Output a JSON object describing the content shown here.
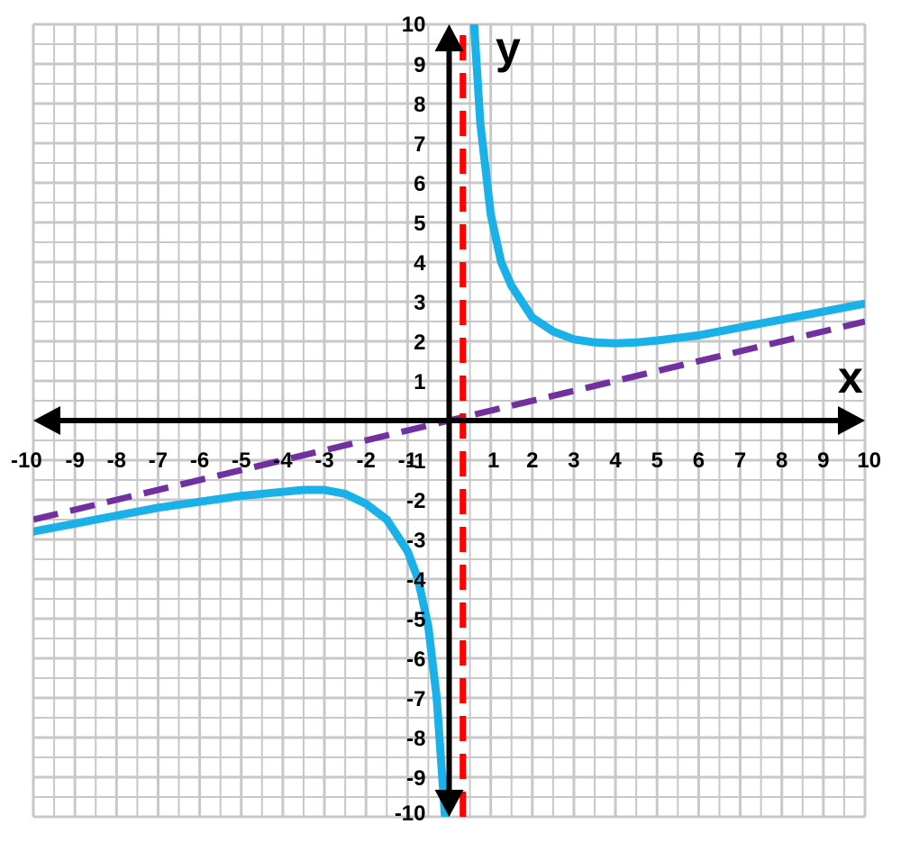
{
  "chart_data": {
    "type": "line",
    "title": "",
    "xlabel": "x",
    "ylabel": "y",
    "xlim": [
      -10,
      10
    ],
    "ylim": [
      -10,
      10
    ],
    "grid": true,
    "x_ticks": [
      -10,
      -9,
      -8,
      -7,
      -6,
      -5,
      -4,
      -3,
      -2,
      -1,
      1,
      2,
      3,
      4,
      5,
      6,
      7,
      8,
      9,
      10
    ],
    "y_ticks": [
      -10,
      -9,
      -8,
      -7,
      -6,
      -5,
      -4,
      -3,
      -2,
      -1,
      1,
      2,
      3,
      4,
      5,
      6,
      7,
      8,
      9,
      10
    ],
    "series": [
      {
        "style": "solid",
        "color": "#1ab0e8",
        "branches": [
          [
            {
              "x": -10,
              "y": -2.8
            },
            {
              "x": -9,
              "y": -2.6
            },
            {
              "x": -8,
              "y": -2.4
            },
            {
              "x": -7,
              "y": -2.2
            },
            {
              "x": -6,
              "y": -2.05
            },
            {
              "x": -5,
              "y": -1.9
            },
            {
              "x": -4,
              "y": -1.8
            },
            {
              "x": -3.5,
              "y": -1.75
            },
            {
              "x": -3,
              "y": -1.75
            },
            {
              "x": -2.5,
              "y": -1.85
            },
            {
              "x": -2,
              "y": -2.1
            },
            {
              "x": -1.5,
              "y": -2.5
            },
            {
              "x": -1,
              "y": -3.3
            },
            {
              "x": -0.75,
              "y": -4.0
            },
            {
              "x": -0.5,
              "y": -5.2
            },
            {
              "x": -0.3,
              "y": -7.0
            },
            {
              "x": -0.1,
              "y": -10
            }
          ],
          [
            {
              "x": 0.6,
              "y": 10
            },
            {
              "x": 0.75,
              "y": 7.5
            },
            {
              "x": 1,
              "y": 5.2
            },
            {
              "x": 1.25,
              "y": 4.0
            },
            {
              "x": 1.5,
              "y": 3.4
            },
            {
              "x": 2,
              "y": 2.6
            },
            {
              "x": 2.5,
              "y": 2.25
            },
            {
              "x": 3,
              "y": 2.05
            },
            {
              "x": 3.5,
              "y": 1.97
            },
            {
              "x": 4,
              "y": 1.95
            },
            {
              "x": 4.5,
              "y": 1.97
            },
            {
              "x": 5,
              "y": 2.02
            },
            {
              "x": 6,
              "y": 2.15
            },
            {
              "x": 7,
              "y": 2.35
            },
            {
              "x": 8,
              "y": 2.55
            },
            {
              "x": 9,
              "y": 2.75
            },
            {
              "x": 10,
              "y": 2.95
            }
          ]
        ]
      },
      {
        "style": "dashed",
        "color": "#7030a0",
        "branches": [
          [
            {
              "x": -10,
              "y": -2.5
            },
            {
              "x": 10,
              "y": 2.5
            }
          ]
        ]
      },
      {
        "style": "dashed",
        "color": "#ff0000",
        "branches": [
          [
            {
              "x": 0.33,
              "y": -10
            },
            {
              "x": 0.33,
              "y": 10
            }
          ]
        ]
      }
    ]
  }
}
